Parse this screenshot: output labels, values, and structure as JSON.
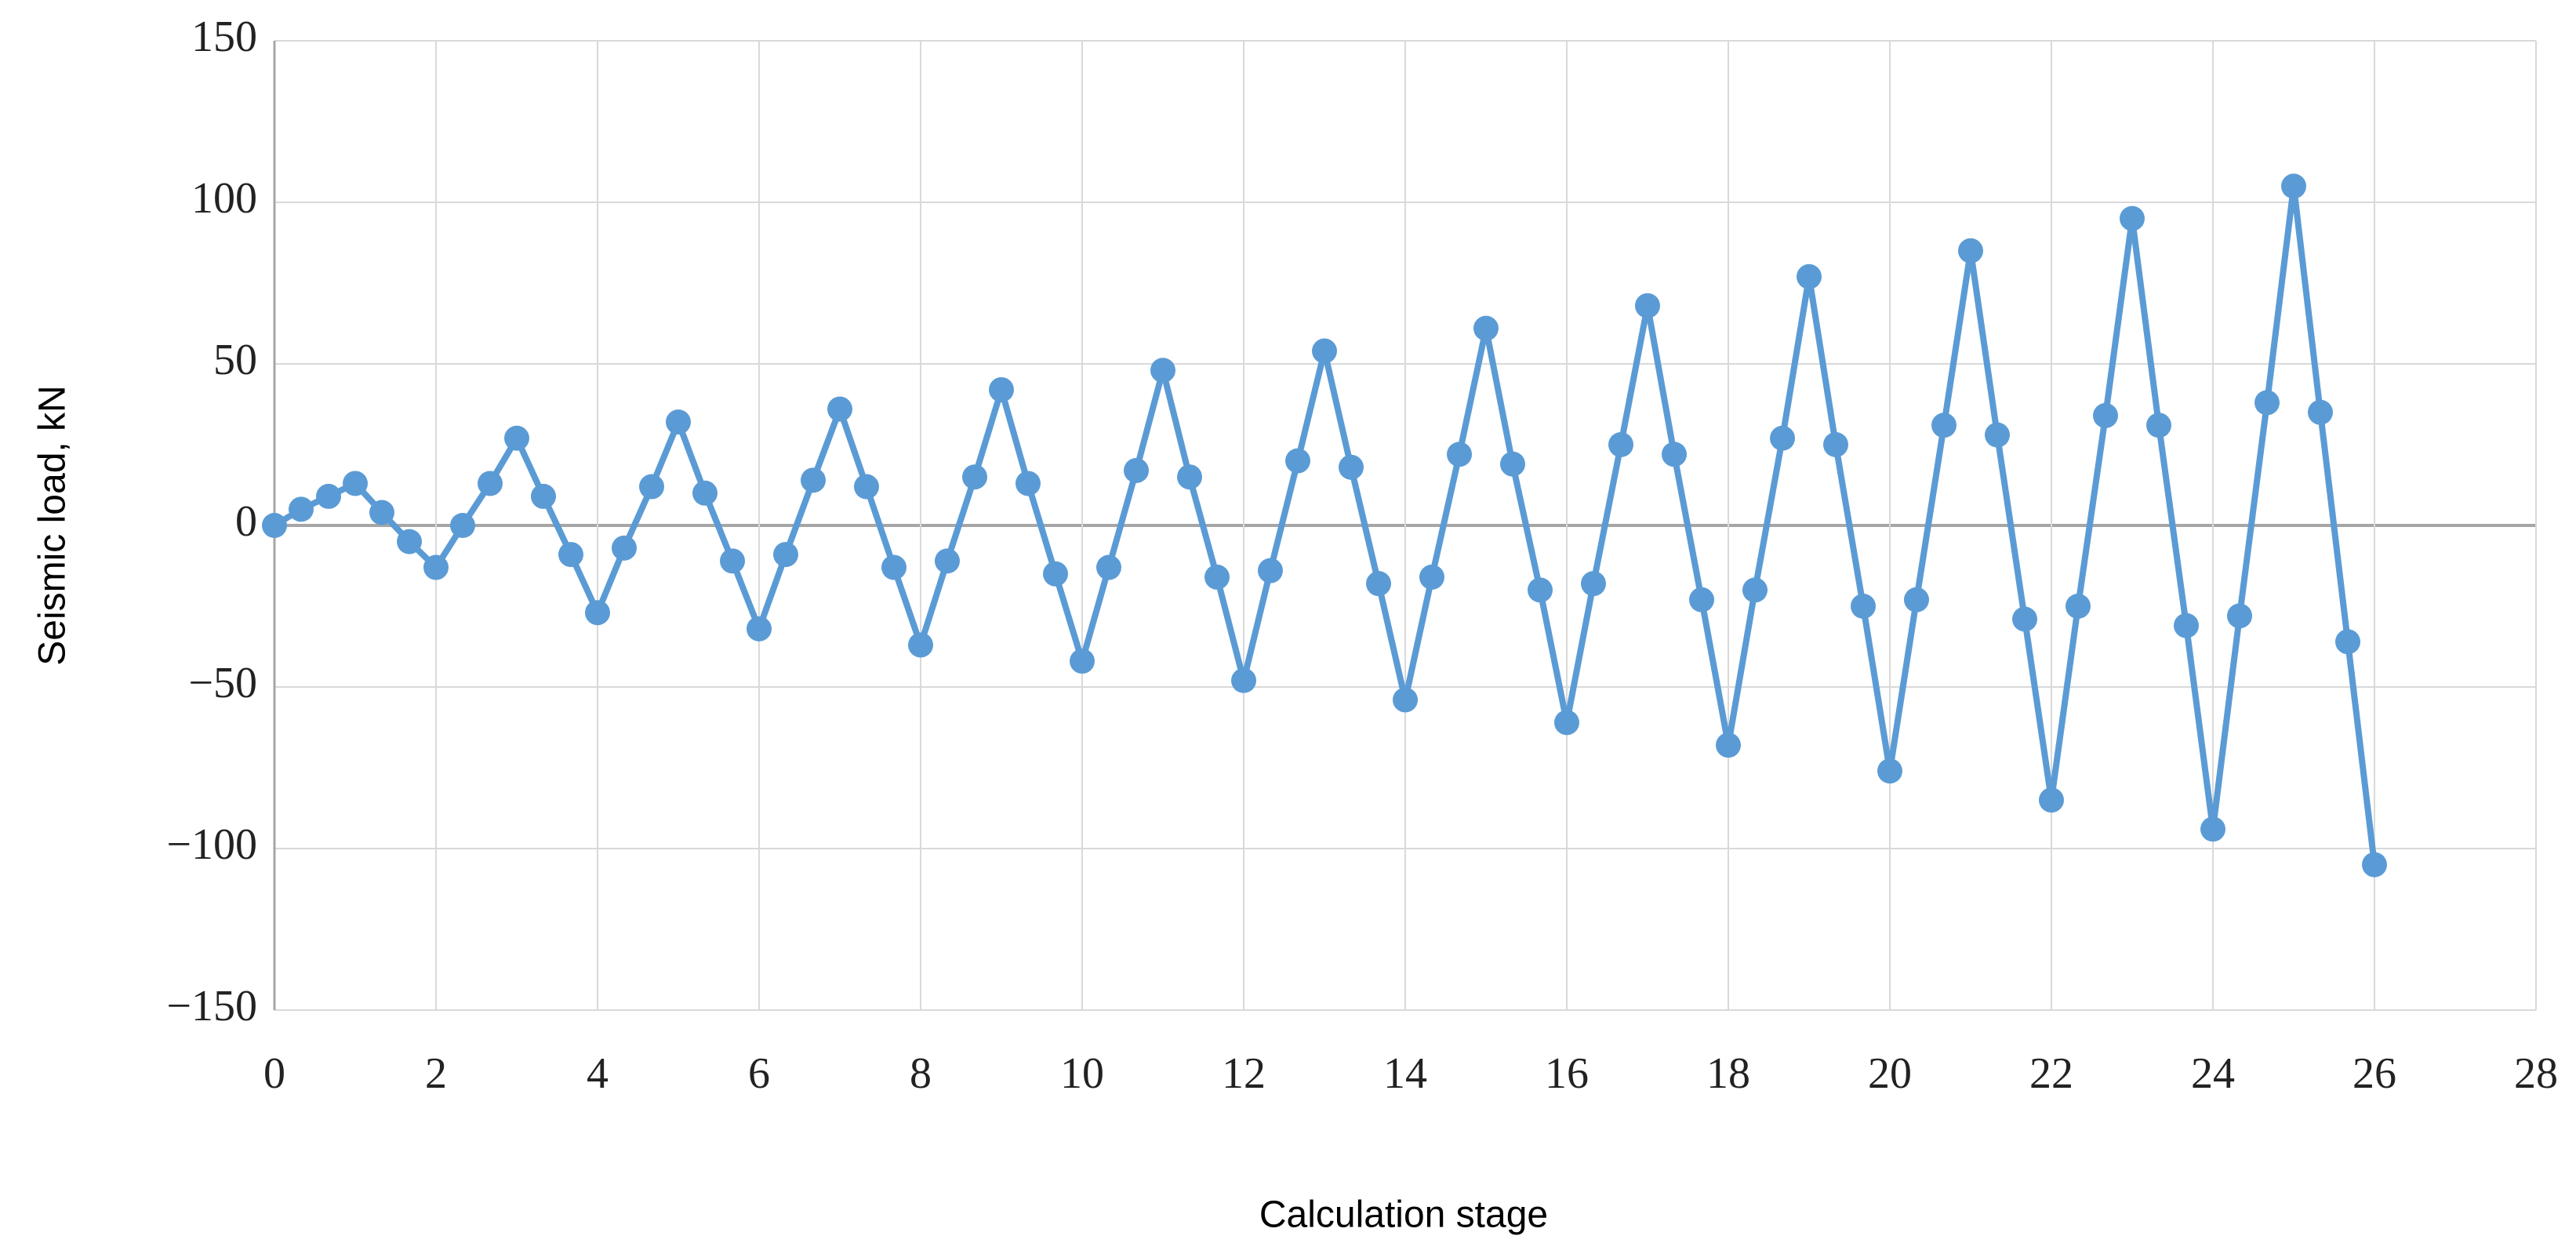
{
  "chart_data": {
    "type": "line",
    "x_label": "Calculation stage",
    "y_label": "Seismic load, kN",
    "x": [
      0,
      0.33,
      0.67,
      1,
      1.33,
      1.67,
      2,
      2.33,
      2.67,
      3,
      3.33,
      3.67,
      4,
      4.33,
      4.67,
      5,
      5.33,
      5.67,
      6,
      6.33,
      6.67,
      7,
      7.33,
      7.67,
      8,
      8.33,
      8.67,
      9,
      9.33,
      9.67,
      10,
      10.33,
      10.67,
      11,
      11.33,
      11.67,
      12,
      12.33,
      12.67,
      13,
      13.33,
      13.67,
      14,
      14.33,
      14.67,
      15,
      15.33,
      15.67,
      16,
      16.33,
      16.67,
      17,
      17.33,
      17.67,
      18,
      18.33,
      18.67,
      19,
      19.33,
      19.67,
      20,
      20.33,
      20.67,
      21,
      21.33,
      21.67,
      22,
      22.33,
      22.67,
      23,
      23.33,
      23.67,
      24,
      24.33,
      24.67,
      25,
      25.33,
      25.67,
      26
    ],
    "series": [
      {
        "color": "#5b9bd5",
        "values": [
          0,
          5,
          9,
          13,
          4,
          -5,
          -13,
          0,
          13,
          27,
          9,
          -9,
          -27,
          -7,
          12,
          32,
          10,
          -11,
          -32,
          -9,
          14,
          36,
          12,
          -13,
          -37,
          -11,
          15,
          42,
          13,
          -15,
          -42,
          -13,
          17,
          48,
          15,
          -16,
          -48,
          -14,
          20,
          54,
          18,
          -18,
          -54,
          -16,
          22,
          61,
          19,
          -20,
          -61,
          -18,
          25,
          68,
          22,
          -23,
          -68,
          -20,
          27,
          77,
          25,
          -25,
          -76,
          -23,
          31,
          85,
          28,
          -29,
          -85,
          -25,
          34,
          95,
          31,
          -31,
          -94,
          -28,
          38,
          105,
          35,
          -36,
          -105
        ]
      }
    ],
    "xlim": [
      0,
      28
    ],
    "ylim": [
      -150,
      150
    ],
    "xticks": [
      0,
      2,
      4,
      6,
      8,
      10,
      12,
      14,
      16,
      18,
      20,
      22,
      24,
      26,
      28
    ],
    "yticks": [
      {
        "value": -150,
        "label": "−150"
      },
      {
        "value": -100,
        "label": "−100"
      },
      {
        "value": -50,
        "label": "−50"
      },
      0,
      50,
      100,
      150
    ],
    "grid": true
  }
}
